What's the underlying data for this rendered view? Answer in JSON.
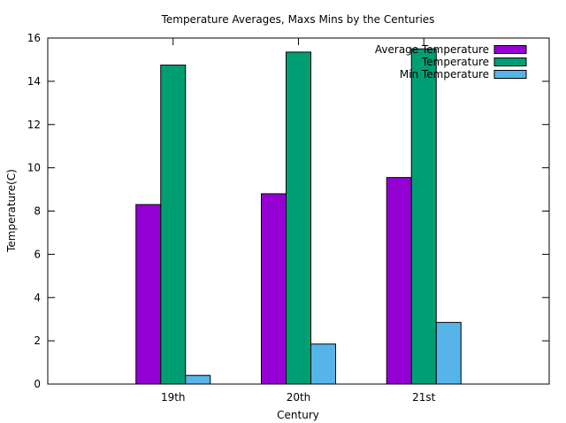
{
  "chart_data": {
    "type": "bar",
    "title": "Temperature Averages, Maxs  Mins by the Centuries",
    "xlabel": "Century",
    "ylabel": "Temperature(C)",
    "categories": [
      "19th",
      "20th",
      "21st"
    ],
    "ylim": [
      0,
      16
    ],
    "yticks": [
      0,
      2,
      4,
      6,
      8,
      10,
      12,
      14,
      16
    ],
    "grid": false,
    "legend_position": "top-right",
    "series": [
      {
        "name": "Average Temperature",
        "values": [
          8.3,
          8.8,
          9.55
        ],
        "color": "#9400d3"
      },
      {
        "name": "Temperature",
        "values": [
          14.75,
          15.35,
          15.5
        ],
        "color": "#009e73"
      },
      {
        "name": "Min Temperature",
        "values": [
          0.4,
          1.85,
          2.85
        ],
        "color": "#56b4e9"
      }
    ]
  }
}
